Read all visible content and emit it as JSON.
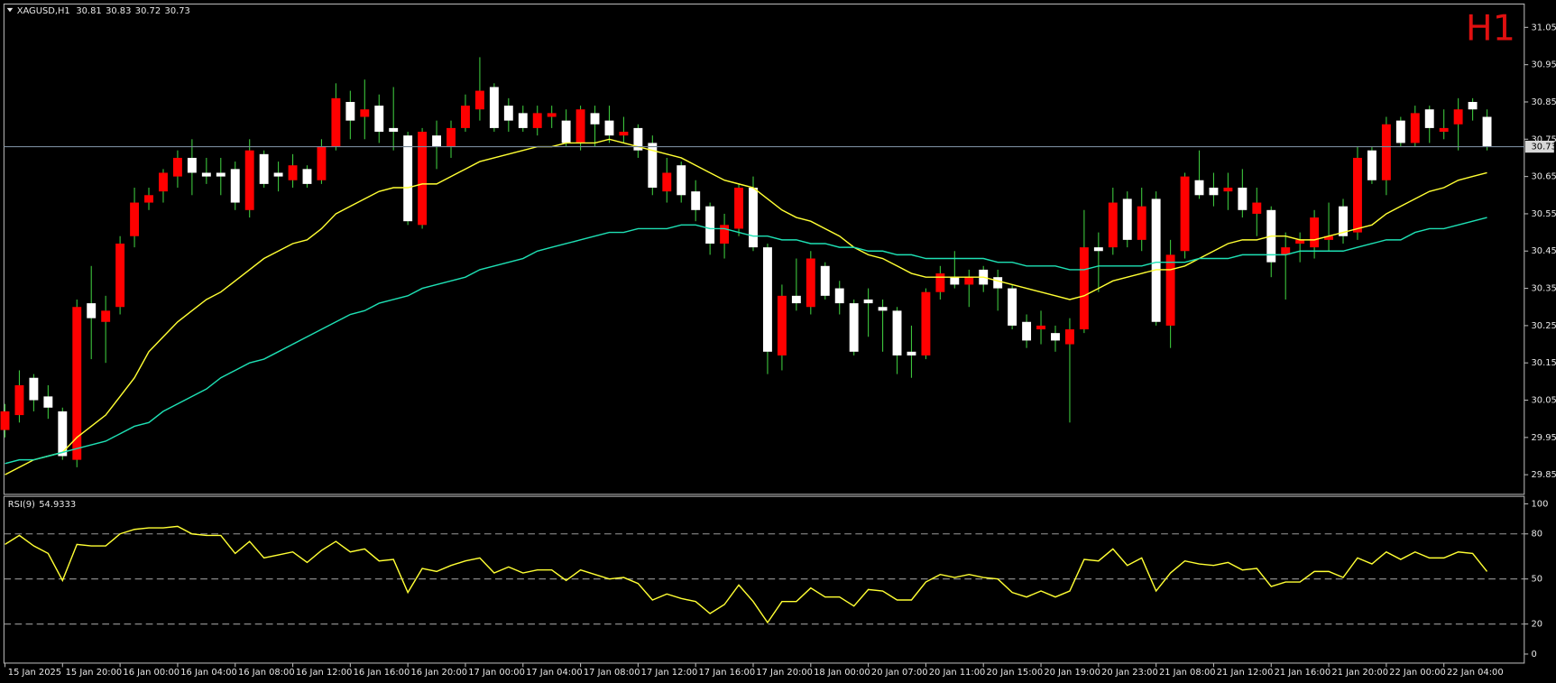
{
  "chart_data": [
    {
      "type": "candlestick",
      "symbol": "XAGUSD,H1",
      "watermark": "H1",
      "up_color": "#ff0000",
      "down_color": "#ffffff",
      "wick_color": "#3cc43c",
      "categories": [
        "15 Jan 2025",
        null,
        null,
        null,
        "15 Jan 20:00",
        null,
        null,
        null,
        "16 Jan 00:00",
        null,
        null,
        null,
        "16 Jan 04:00",
        null,
        null,
        null,
        "16 Jan 08:00",
        null,
        null,
        null,
        "16 Jan 12:00",
        null,
        null,
        null,
        "16 Jan 16:00",
        null,
        null,
        null,
        "16 Jan 20:00",
        null,
        null,
        null,
        "17 Jan 00:00",
        null,
        null,
        null,
        "17 Jan 04:00",
        null,
        null,
        null,
        "17 Jan 08:00",
        null,
        null,
        null,
        "17 Jan 12:00",
        null,
        null,
        null,
        "17 Jan 16:00",
        null,
        null,
        null,
        "17 Jan 20:00",
        null,
        null,
        null,
        "18 Jan 00:00",
        null,
        null,
        null,
        "20 Jan 07:00",
        null,
        null,
        null,
        "20 Jan 11:00",
        null,
        null,
        null,
        "20 Jan 15:00",
        null,
        null,
        null,
        "20 Jan 19:00",
        null,
        null,
        null,
        "20 Jan 23:00",
        null,
        null,
        null,
        "21 Jan 08:00",
        null,
        null,
        null,
        "21 Jan 12:00",
        null,
        null,
        null,
        "21 Jan 16:00",
        null,
        null,
        null,
        "21 Jan 20:00",
        null,
        null,
        null,
        "22 Jan 00:00",
        null,
        null,
        null,
        "22 Jan 04:00",
        null,
        null,
        null
      ],
      "open": [
        29.97,
        30.01,
        30.11,
        30.06,
        30.02,
        29.89,
        30.31,
        30.26,
        30.3,
        30.49,
        30.58,
        30.61,
        30.65,
        30.7,
        30.66,
        30.66,
        30.67,
        30.56,
        30.71,
        30.66,
        30.64,
        30.67,
        30.64,
        30.73,
        30.85,
        30.81,
        30.84,
        30.78,
        30.76,
        30.52,
        30.76,
        30.73,
        30.78,
        30.83,
        30.89,
        30.84,
        30.82,
        30.78,
        30.81,
        30.8,
        30.74,
        30.82,
        30.8,
        30.76,
        30.78,
        30.74,
        30.61,
        30.68,
        30.61,
        30.57,
        30.47,
        30.51,
        30.62,
        30.46,
        30.17,
        30.33,
        30.3,
        30.41,
        30.35,
        30.31,
        30.32,
        30.3,
        30.29,
        30.18,
        30.17,
        30.34,
        30.38,
        30.36,
        30.4,
        30.38,
        30.35,
        30.26,
        30.24,
        30.23,
        30.2,
        30.24,
        30.46,
        30.46,
        30.59,
        30.48,
        30.59,
        30.25,
        30.45,
        30.64,
        30.62,
        30.61,
        30.62,
        30.55,
        30.56,
        30.44,
        30.47,
        30.46,
        30.48,
        30.57,
        30.5,
        30.72,
        30.64,
        30.8,
        30.74,
        30.83,
        30.77,
        30.79,
        30.85,
        30.81
      ],
      "high": [
        30.04,
        30.13,
        30.12,
        30.09,
        30.03,
        30.32,
        30.41,
        30.33,
        30.49,
        30.62,
        30.62,
        30.67,
        30.72,
        30.75,
        30.7,
        30.7,
        30.69,
        30.75,
        30.72,
        30.69,
        30.71,
        30.68,
        30.75,
        30.9,
        30.88,
        30.91,
        30.87,
        30.89,
        30.77,
        30.78,
        30.8,
        30.8,
        30.87,
        30.97,
        30.9,
        30.86,
        30.84,
        30.84,
        30.84,
        30.83,
        30.84,
        30.84,
        30.84,
        30.81,
        30.79,
        30.76,
        30.7,
        30.69,
        30.64,
        30.58,
        30.55,
        30.63,
        30.65,
        30.47,
        30.36,
        30.43,
        30.45,
        30.42,
        30.37,
        30.32,
        30.35,
        30.32,
        30.3,
        30.25,
        30.35,
        30.41,
        30.45,
        30.4,
        30.41,
        30.4,
        30.36,
        30.28,
        30.29,
        30.25,
        30.27,
        30.56,
        30.5,
        30.62,
        30.61,
        30.62,
        30.61,
        30.48,
        30.66,
        30.72,
        30.66,
        30.66,
        30.67,
        30.62,
        30.57,
        30.5,
        30.5,
        30.56,
        30.58,
        30.59,
        30.73,
        30.73,
        30.81,
        30.81,
        30.84,
        30.84,
        30.83,
        30.86,
        30.86,
        30.83
      ],
      "low": [
        29.95,
        29.99,
        30.02,
        30.0,
        29.89,
        29.87,
        30.16,
        30.15,
        30.28,
        30.46,
        30.56,
        30.58,
        30.62,
        30.6,
        30.63,
        30.6,
        30.56,
        30.54,
        30.62,
        30.61,
        30.62,
        30.62,
        30.63,
        30.72,
        30.75,
        30.75,
        30.74,
        30.72,
        30.52,
        30.51,
        30.67,
        30.7,
        30.77,
        30.8,
        30.77,
        30.77,
        30.77,
        30.76,
        30.78,
        30.73,
        30.72,
        30.73,
        30.74,
        30.74,
        30.7,
        30.6,
        30.58,
        30.58,
        30.53,
        30.44,
        30.43,
        30.49,
        30.45,
        30.12,
        30.13,
        30.29,
        30.28,
        30.32,
        30.28,
        30.17,
        30.22,
        30.18,
        30.12,
        30.11,
        30.16,
        30.32,
        30.35,
        30.3,
        30.34,
        30.29,
        30.24,
        30.19,
        30.2,
        30.18,
        29.99,
        30.23,
        30.34,
        30.44,
        30.46,
        30.45,
        30.25,
        30.19,
        30.43,
        30.59,
        30.57,
        30.56,
        30.54,
        30.49,
        30.38,
        30.32,
        30.42,
        30.43,
        30.45,
        30.47,
        30.48,
        30.63,
        30.6,
        30.73,
        30.73,
        30.74,
        30.75,
        30.72,
        30.8,
        30.72
      ],
      "close": [
        30.02,
        30.09,
        30.05,
        30.03,
        29.9,
        30.3,
        30.27,
        30.29,
        30.47,
        30.58,
        30.6,
        30.66,
        30.7,
        30.66,
        30.65,
        30.65,
        30.58,
        30.72,
        30.63,
        30.65,
        30.68,
        30.63,
        30.73,
        30.86,
        30.8,
        30.83,
        30.77,
        30.77,
        30.53,
        30.77,
        30.73,
        30.78,
        30.84,
        30.88,
        30.78,
        30.8,
        30.78,
        30.82,
        30.82,
        30.74,
        30.83,
        30.79,
        30.76,
        30.77,
        30.72,
        30.62,
        30.66,
        30.6,
        30.56,
        30.47,
        30.52,
        30.62,
        30.46,
        30.18,
        30.33,
        30.31,
        30.43,
        30.33,
        30.31,
        30.18,
        30.31,
        30.29,
        30.17,
        30.17,
        30.34,
        30.39,
        30.36,
        30.38,
        30.36,
        30.35,
        30.25,
        30.21,
        30.25,
        30.21,
        30.24,
        30.46,
        30.45,
        30.58,
        30.48,
        30.57,
        30.26,
        30.44,
        30.65,
        30.6,
        30.6,
        30.62,
        30.56,
        30.58,
        30.42,
        30.46,
        30.48,
        30.54,
        30.49,
        30.49,
        30.7,
        30.64,
        30.79,
        30.74,
        30.82,
        30.78,
        30.78,
        30.83,
        30.83,
        30.73
      ],
      "lines": [
        {
          "color": "#ffff33",
          "values": [
            29.85,
            29.87,
            29.89,
            29.9,
            29.91,
            29.95,
            29.98,
            30.01,
            30.06,
            30.11,
            30.18,
            30.22,
            30.26,
            30.29,
            30.32,
            30.34,
            30.37,
            30.4,
            30.43,
            30.45,
            30.47,
            30.48,
            30.51,
            30.55,
            30.57,
            30.59,
            30.61,
            30.62,
            30.62,
            30.63,
            30.63,
            30.65,
            30.67,
            30.69,
            30.7,
            30.71,
            30.72,
            30.73,
            30.73,
            30.74,
            30.74,
            30.74,
            30.75,
            30.74,
            30.73,
            30.72,
            30.71,
            30.7,
            30.68,
            30.66,
            30.64,
            30.63,
            30.62,
            30.59,
            30.56,
            30.54,
            30.53,
            30.51,
            30.49,
            30.46,
            30.44,
            30.43,
            30.41,
            30.39,
            30.38,
            30.38,
            30.38,
            30.38,
            30.38,
            30.37,
            30.36,
            30.35,
            30.34,
            30.33,
            30.32,
            30.33,
            30.35,
            30.37,
            30.38,
            30.39,
            30.4,
            30.4,
            30.41,
            30.43,
            30.45,
            30.47,
            30.48,
            30.48,
            30.49,
            30.49,
            30.48,
            30.48,
            30.49,
            30.5,
            30.51,
            30.52,
            30.55,
            30.57,
            30.59,
            30.61,
            30.62,
            30.64,
            30.65,
            30.66
          ]
        },
        {
          "color": "#1ee0b4",
          "values": [
            29.88,
            29.89,
            29.89,
            29.9,
            29.91,
            29.92,
            29.93,
            29.94,
            29.96,
            29.98,
            29.99,
            30.02,
            30.04,
            30.06,
            30.08,
            30.11,
            30.13,
            30.15,
            30.16,
            30.18,
            30.2,
            30.22,
            30.24,
            30.26,
            30.28,
            30.29,
            30.31,
            30.32,
            30.33,
            30.35,
            30.36,
            30.37,
            30.38,
            30.4,
            30.41,
            30.42,
            30.43,
            30.45,
            30.46,
            30.47,
            30.48,
            30.49,
            30.5,
            30.5,
            30.51,
            30.51,
            30.51,
            30.52,
            30.52,
            30.51,
            30.51,
            30.5,
            30.49,
            30.49,
            30.48,
            30.48,
            30.47,
            30.47,
            30.46,
            30.46,
            30.45,
            30.45,
            30.44,
            30.44,
            30.43,
            30.43,
            30.43,
            30.43,
            30.43,
            30.42,
            30.42,
            30.41,
            30.41,
            30.41,
            30.4,
            30.4,
            30.41,
            30.41,
            30.41,
            30.41,
            30.42,
            30.42,
            30.42,
            30.43,
            30.43,
            30.43,
            30.44,
            30.44,
            30.44,
            30.44,
            30.45,
            30.45,
            30.45,
            30.45,
            30.46,
            30.47,
            30.48,
            30.48,
            30.5,
            30.51,
            30.51,
            30.52,
            30.53,
            30.54
          ]
        }
      ],
      "price_line_color": "#778899",
      "ylim": [
        29.8,
        31.11
      ],
      "yticks": [
        29.85,
        29.95,
        30.05,
        30.15,
        30.25,
        30.35,
        30.45,
        30.55,
        30.65,
        30.75,
        30.85,
        30.95,
        31.05
      ]
    },
    {
      "type": "line",
      "title": "RSI(9)",
      "color": "#ffff33",
      "values": [
        73,
        79,
        72,
        67,
        49,
        73,
        72,
        72,
        80,
        83,
        84,
        84,
        85,
        80,
        79,
        79,
        67,
        75,
        64,
        66,
        68,
        61,
        69,
        75,
        68,
        70,
        62,
        63,
        41,
        57,
        55,
        59,
        62,
        64,
        54,
        58,
        54,
        56,
        56,
        49,
        56,
        53,
        50,
        51,
        47,
        36,
        40,
        37,
        35,
        27,
        33,
        46,
        35,
        21,
        35,
        35,
        44,
        38,
        38,
        32,
        43,
        42,
        36,
        36,
        48,
        53,
        51,
        53,
        51,
        50,
        41,
        38,
        42,
        38,
        42,
        63,
        62,
        70,
        59,
        64,
        42,
        54,
        62,
        60,
        59,
        61,
        56,
        57,
        45,
        48,
        48,
        55,
        55,
        51,
        64,
        60,
        68,
        63,
        68,
        64,
        64,
        68,
        67,
        54.9333
      ],
      "ylim": [
        -6,
        105
      ],
      "yticks": [
        0,
        20,
        50,
        80,
        100
      ],
      "levels": [
        20,
        50,
        80
      ]
    }
  ]
}
